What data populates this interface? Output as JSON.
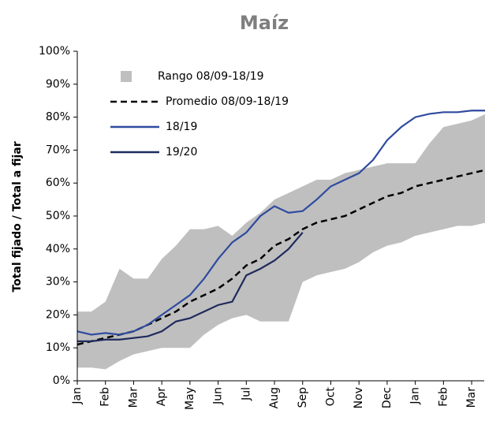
{
  "chart_data": {
    "type": "line",
    "title": "Maíz",
    "ylabel": "Total fijado / Total a fijar",
    "categories": [
      "Jan",
      null,
      "Feb",
      null,
      "Mar",
      null,
      "Apr",
      null,
      "May",
      null,
      "Jun",
      null,
      "Jul",
      null,
      "Aug",
      null,
      "Sep",
      null,
      "Oct",
      null,
      "Nov",
      null,
      "Dec",
      null,
      "Jan",
      null,
      "Feb",
      null,
      "Mar",
      null
    ],
    "ylim": [
      0,
      100
    ],
    "yticks": [
      {
        "value": 0,
        "label": "0%"
      },
      {
        "value": 10,
        "label": "10%"
      },
      {
        "value": 20,
        "label": "20%"
      },
      {
        "value": 30,
        "label": "30%"
      },
      {
        "value": 40,
        "label": "40%"
      },
      {
        "value": 50,
        "label": "50%"
      },
      {
        "value": 60,
        "label": "60%"
      },
      {
        "value": 70,
        "label": "70%"
      },
      {
        "value": 80,
        "label": "80%"
      },
      {
        "value": 90,
        "label": "90%"
      },
      {
        "value": 100,
        "label": "100%"
      }
    ],
    "legend": "upper left",
    "series": [
      {
        "name": "Rango 08/09-18/19",
        "type": "band",
        "color": "#bfbfbf",
        "low": [
          4,
          4,
          3.5,
          6,
          8,
          9,
          10,
          10,
          10,
          14,
          17,
          19,
          20,
          18,
          18,
          18,
          30,
          32,
          33,
          34,
          36,
          39,
          41,
          42,
          44,
          45,
          46,
          47,
          47,
          48
        ],
        "high": [
          21,
          21,
          24,
          34,
          31,
          31,
          37,
          41,
          46,
          46,
          47,
          44,
          48,
          51,
          55,
          57,
          59,
          61,
          61,
          63,
          64,
          65,
          66,
          66,
          66,
          72,
          77,
          78,
          79,
          81
        ]
      },
      {
        "name": "Promedio 08/09-18/19",
        "color": "#000000",
        "dashed": true,
        "values": [
          11,
          12,
          13,
          14,
          15,
          17,
          19,
          21,
          24,
          26,
          28,
          31,
          35,
          37,
          41,
          43,
          46,
          48,
          49,
          50,
          52,
          54,
          56,
          57,
          59,
          60,
          61,
          62,
          63,
          64
        ]
      },
      {
        "name": "18/19",
        "color": "#2f4b9f",
        "dashed": false,
        "values": [
          15,
          14,
          14.5,
          14,
          15,
          17,
          20,
          23,
          26,
          31,
          37,
          42,
          45,
          50,
          53,
          51,
          51.5,
          55,
          59,
          61,
          63,
          67,
          73,
          77,
          80,
          81,
          81.5,
          81.5,
          82,
          82
        ]
      },
      {
        "name": "19/20",
        "color": "#1f2a5c",
        "dashed": false,
        "values": [
          12,
          12,
          12.5,
          12.5,
          13,
          13.5,
          15,
          18,
          19,
          21,
          23,
          24,
          32,
          34,
          36.5,
          40,
          45,
          null,
          null,
          null,
          null,
          null,
          null,
          null,
          null,
          null,
          null,
          null,
          null,
          null
        ]
      }
    ]
  }
}
